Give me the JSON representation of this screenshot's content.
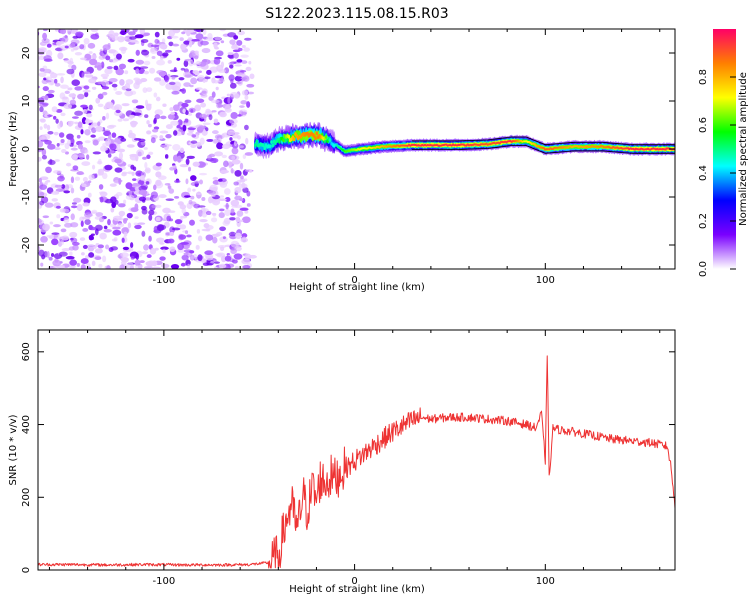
{
  "title": "S122.2023.115.08.15.R03",
  "chart_data": [
    {
      "type": "heatmap",
      "xlabel": "Height of straight line (km)",
      "ylabel": "Frequency (Hz)",
      "xlim": [
        -166,
        168
      ],
      "ylim": [
        -25,
        25
      ],
      "xticks": [
        -100,
        0,
        100
      ],
      "yticks": [
        -20,
        -10,
        0,
        10,
        20
      ],
      "colorbar": {
        "label": "Normalized spectral amplitude",
        "range": [
          0,
          1
        ],
        "ticks": [
          "0.0",
          "0.2",
          "0.4",
          "0.6",
          "0.8"
        ],
        "tick_values": [
          0.0,
          0.2,
          0.4,
          0.6,
          0.8
        ],
        "colors": [
          "#ffffff",
          "#7a00ff",
          "#0000ff",
          "#00ffff",
          "#00ff00",
          "#ffff00",
          "#ff7f00",
          "#ff0066"
        ]
      },
      "noise_region_x": [
        -166,
        -55
      ],
      "ridge": [
        {
          "x": -52,
          "freq": 1.0,
          "amp": 0.5
        },
        {
          "x": -45,
          "freq": 0.5,
          "amp": 0.45
        },
        {
          "x": -40,
          "freq": 2.0,
          "amp": 0.5
        },
        {
          "x": -32,
          "freq": 2.5,
          "amp": 0.8
        },
        {
          "x": -25,
          "freq": 2.8,
          "amp": 0.85
        },
        {
          "x": -18,
          "freq": 2.8,
          "amp": 0.85
        },
        {
          "x": -12,
          "freq": 1.5,
          "amp": 0.4
        },
        {
          "x": -5,
          "freq": -0.5,
          "amp": 0.6
        },
        {
          "x": 3,
          "freq": 0.0,
          "amp": 0.7
        },
        {
          "x": 15,
          "freq": 0.5,
          "amp": 0.8
        },
        {
          "x": 30,
          "freq": 0.8,
          "amp": 0.95
        },
        {
          "x": 55,
          "freq": 0.8,
          "amp": 0.95
        },
        {
          "x": 70,
          "freq": 1.0,
          "amp": 0.9
        },
        {
          "x": 82,
          "freq": 1.6,
          "amp": 0.95
        },
        {
          "x": 90,
          "freq": 1.6,
          "amp": 0.7
        },
        {
          "x": 100,
          "freq": 0.0,
          "amp": 0.9
        },
        {
          "x": 115,
          "freq": 0.5,
          "amp": 0.8
        },
        {
          "x": 130,
          "freq": 0.5,
          "amp": 0.85
        },
        {
          "x": 145,
          "freq": 0.0,
          "amp": 0.95
        },
        {
          "x": 168,
          "freq": 0.0,
          "amp": 0.95
        }
      ]
    },
    {
      "type": "line",
      "xlabel": "Height of straight line (km)",
      "ylabel": "SNR (10 * v/v)",
      "xlim": [
        -166,
        168
      ],
      "ylim": [
        0,
        660
      ],
      "xticks": [
        -100,
        0,
        100
      ],
      "yticks": [
        0,
        200,
        400,
        600
      ],
      "series": [
        {
          "color": "#ee3333",
          "x": [
            -166,
            -150,
            -130,
            -110,
            -90,
            -70,
            -55,
            -45,
            -40,
            -38,
            -35,
            -33,
            -30,
            -27,
            -25,
            -22,
            -20,
            -18,
            -15,
            -12,
            -10,
            -7,
            -5,
            -2,
            0,
            5,
            10,
            15,
            20,
            25,
            30,
            35,
            40,
            50,
            60,
            70,
            80,
            90,
            95,
            98,
            100,
            101,
            102,
            104,
            108,
            115,
            125,
            135,
            145,
            155,
            160,
            164,
            166,
            168
          ],
          "y": [
            15,
            15,
            14,
            15,
            14,
            14,
            15,
            20,
            40,
            90,
            150,
            180,
            110,
            210,
            160,
            230,
            190,
            250,
            240,
            260,
            250,
            270,
            280,
            290,
            300,
            320,
            340,
            360,
            380,
            395,
            410,
            420,
            415,
            420,
            420,
            415,
            410,
            400,
            390,
            430,
            300,
            600,
            250,
            390,
            385,
            380,
            370,
            360,
            355,
            350,
            345,
            340,
            280,
            170
          ]
        }
      ]
    }
  ]
}
